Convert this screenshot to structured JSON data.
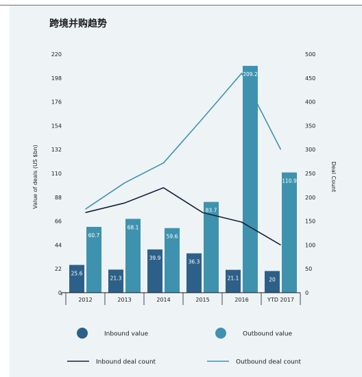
{
  "chart_data": {
    "type": "bar",
    "title": "跨境并购趋势",
    "categories": [
      "2012",
      "2013",
      "2014",
      "2015",
      "2016",
      "YTD 2017"
    ],
    "ylabel": "Value of deals (US $bn)",
    "y2label": "Deal Count",
    "ylim": [
      0,
      220
    ],
    "y2lim": [
      0,
      500
    ],
    "yticks": [
      "0",
      "22",
      "44",
      "66",
      "88",
      "110",
      "132",
      "154",
      "176",
      "198",
      "220"
    ],
    "y2ticks": [
      "0",
      "50",
      "100",
      "150",
      "200",
      "250",
      "300",
      "350",
      "400",
      "450",
      "500"
    ],
    "series": [
      {
        "name": "Inbound value",
        "kind": "bar",
        "axis": "left",
        "color": "#2d6088",
        "values": [
          25.6,
          21.3,
          39.9,
          36.3,
          21.1,
          20
        ],
        "labels": [
          "25.6",
          "21.3",
          "39.9",
          "36.3",
          "21.1",
          "20"
        ]
      },
      {
        "name": "Outbound value",
        "kind": "bar",
        "axis": "left",
        "color": "#3f92ae",
        "values": [
          60.7,
          68.1,
          59.6,
          83.7,
          209.2,
          110.9
        ],
        "labels": [
          "60.7",
          "68.1",
          "59.6",
          "83.7",
          "209.2",
          "110.9"
        ]
      },
      {
        "name": "Inbound deal count",
        "kind": "line",
        "axis": "right",
        "color": "#14223c",
        "values": [
          168,
          188,
          220,
          168,
          148,
          100
        ]
      },
      {
        "name": "Outbound deal count",
        "kind": "line",
        "axis": "right",
        "color": "#3f92ae",
        "values": [
          175,
          230,
          272,
          365,
          460,
          300
        ]
      }
    ],
    "legend": "bottom",
    "grid": false
  }
}
